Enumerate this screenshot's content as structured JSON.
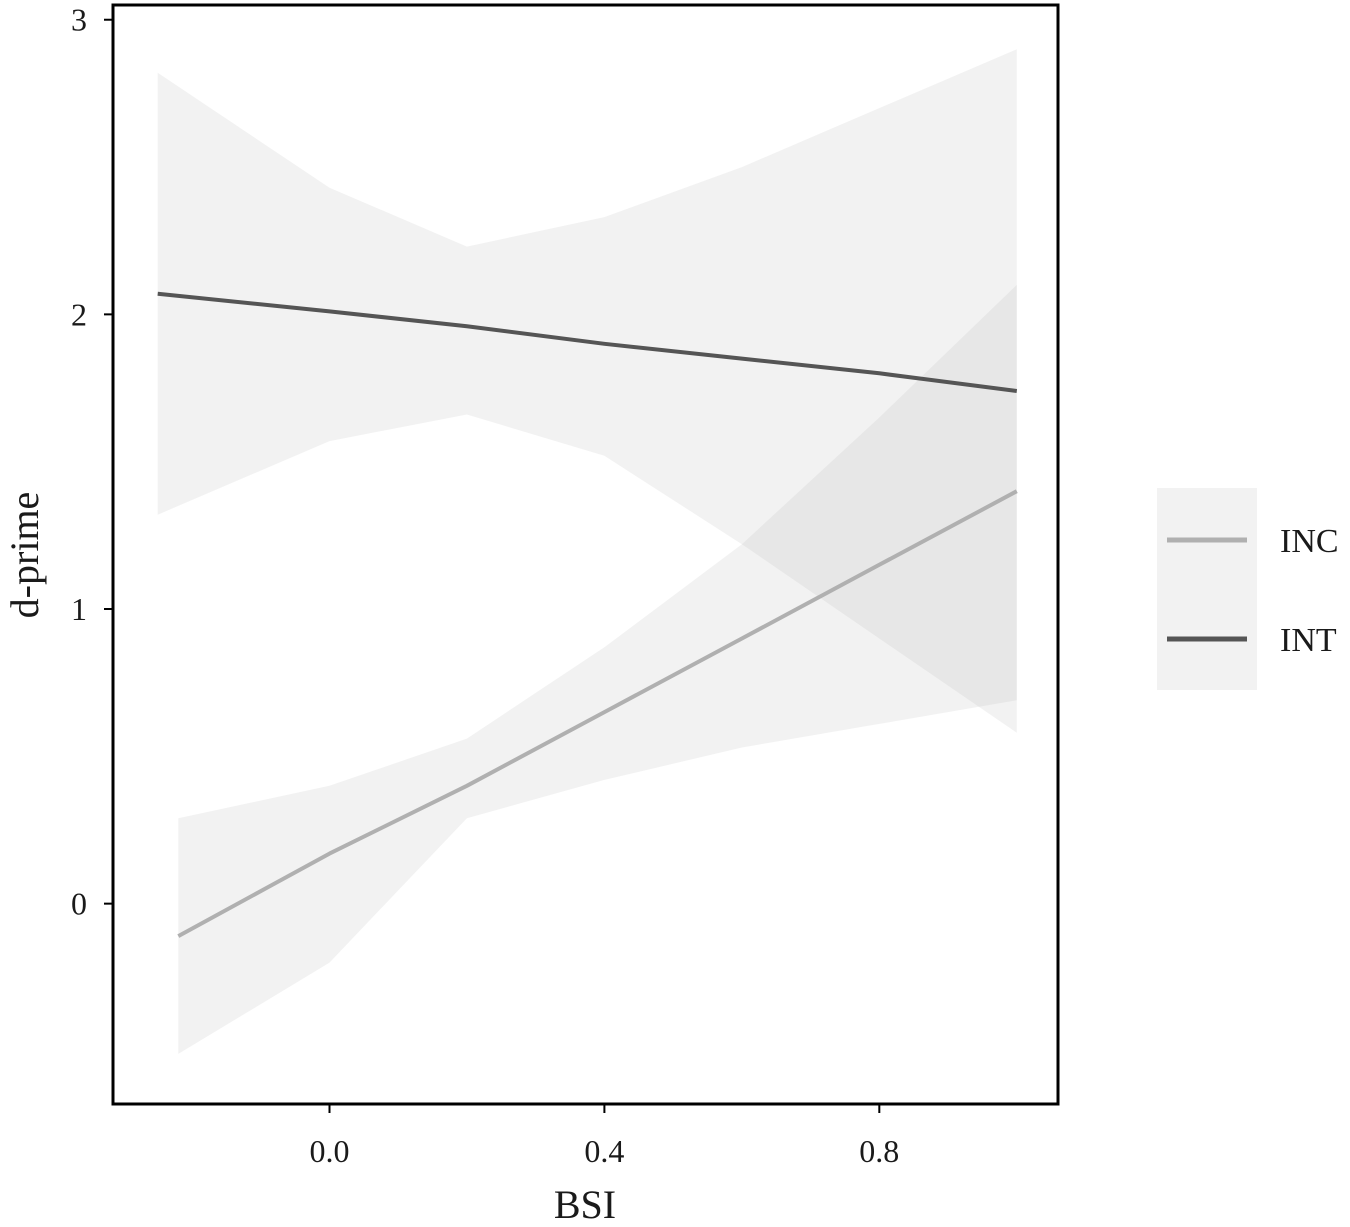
{
  "chart_data": {
    "type": "line",
    "title": "",
    "xlabel": "BSI",
    "ylabel": "d-prime",
    "xlim": [
      -0.315,
      1.06
    ],
    "ylim": [
      -0.68,
      3.05
    ],
    "xticks": [
      {
        "value": 0.0,
        "label": "0.0"
      },
      {
        "value": 0.4,
        "label": "0.4"
      },
      {
        "value": 0.8,
        "label": "0.8"
      }
    ],
    "yticks": [
      {
        "value": 0,
        "label": "0"
      },
      {
        "value": 1,
        "label": "1"
      },
      {
        "value": 2,
        "label": "2"
      },
      {
        "value": 3,
        "label": "3"
      }
    ],
    "grid": false,
    "legend_position": "right",
    "series": [
      {
        "name": "INC",
        "color": "#b0b0b0",
        "x": [
          -0.22,
          0.0,
          0.2,
          0.4,
          0.6,
          0.8,
          1.0
        ],
        "y": [
          -0.11,
          0.17,
          0.4,
          0.65,
          0.9,
          1.15,
          1.4
        ],
        "lower": [
          -0.51,
          -0.2,
          0.29,
          0.42,
          0.53,
          0.61,
          0.69
        ],
        "upper": [
          0.29,
          0.4,
          0.56,
          0.87,
          1.22,
          1.65,
          2.1
        ]
      },
      {
        "name": "INT",
        "color": "#555555",
        "x": [
          -0.25,
          0.0,
          0.2,
          0.4,
          0.6,
          0.8,
          1.0
        ],
        "y": [
          2.07,
          2.01,
          1.96,
          1.9,
          1.85,
          1.8,
          1.74
        ],
        "lower": [
          1.32,
          1.57,
          1.66,
          1.52,
          1.22,
          0.9,
          0.58
        ],
        "upper": [
          2.82,
          2.43,
          2.23,
          2.33,
          2.5,
          2.7,
          2.9
        ]
      }
    ]
  }
}
